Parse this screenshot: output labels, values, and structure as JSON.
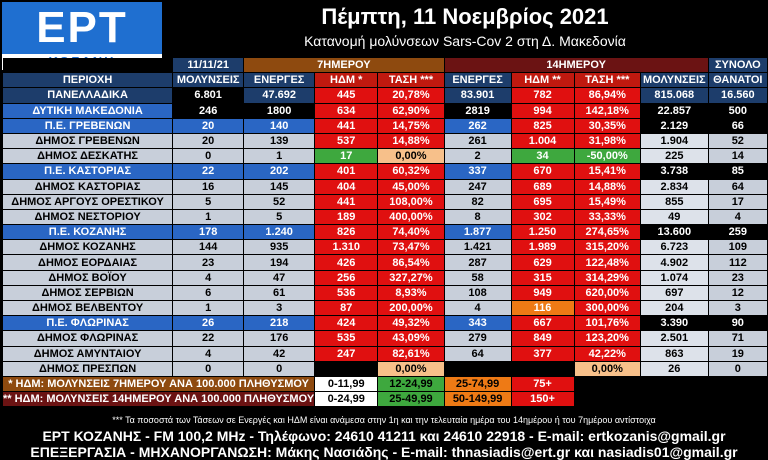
{
  "logo": {
    "brand": "ΕΡΤ",
    "city": "ΚΟΖΑΝΗ"
  },
  "header": {
    "title": "Πέμπτη, 11 Νοεμβρίος 2021",
    "subtitle": "Κατανομή μολύνσεων Sars-Cov 2 στη Δ. Μακεδονία"
  },
  "groups": {
    "date": "11/11/21",
    "g7": "7ΗΜΕΡΟΥ",
    "g14": "14ΗΜΕΡΟΥ",
    "total": "ΣΥΝΟΛΟ"
  },
  "columns": [
    "ΠΕΡΙΟΧΗ",
    "ΜΟΛΥΝΣΕΙΣ",
    "ΕΝΕΡΓΕΣ",
    "ΗΔΜ *",
    "ΤΑΣΗ ***",
    "ΕΝΕΡΓΕΣ",
    "ΗΔΜ **",
    "ΤΑΣΗ ***",
    "ΜΟΛΥΝΣΕΙΣ",
    "ΘΑΝΑΤΟΙ"
  ],
  "rows": [
    {
      "type": "nat",
      "name": "ΠΑΝΕΛΛΑΔΙΚΑ",
      "cells": [
        "6.801",
        "47.692",
        "445",
        "20,78%",
        "83.901",
        "782",
        "86,94%",
        "815.068",
        "16.560"
      ]
    },
    {
      "type": "reg",
      "name": "ΔΥΤΙΚΗ ΜΑΚΕΔΟΝΙΑ",
      "cells": [
        "246",
        "1800",
        "634",
        "62,90%",
        "2819",
        "994",
        "142,18%",
        "22.857",
        "500"
      ]
    },
    {
      "type": "pe",
      "name": "Π.Ε. ΓΡΕΒΕΝΩΝ",
      "cells": [
        "20",
        "140",
        "441",
        "14,75%",
        "262",
        "825",
        "30,35%",
        "2.129",
        "66"
      ]
    },
    {
      "type": "d",
      "name": "ΔΗΜΟΣ ΓΡΕΒΕΝΩΝ",
      "cells": [
        "20",
        "139",
        "537",
        "14,88%",
        "261",
        "1.004",
        "31,98%",
        "1.904",
        "52"
      ]
    },
    {
      "type": "d",
      "name": "ΔΗΜΟΣ ΔΕΣΚΑΤΗΣ",
      "cells": [
        "0",
        "1",
        "17",
        "0,00%",
        "2",
        "34",
        "-50,00%",
        "225",
        "14"
      ]
    },
    {
      "type": "pe",
      "name": "Π.Ε. ΚΑΣΤΟΡΙΑΣ",
      "cells": [
        "22",
        "202",
        "401",
        "60,32%",
        "337",
        "670",
        "15,41%",
        "3.738",
        "85"
      ]
    },
    {
      "type": "d",
      "name": "ΔΗΜΟΣ ΚΑΣΤΟΡΙΑΣ",
      "cells": [
        "16",
        "145",
        "404",
        "45,00%",
        "247",
        "689",
        "14,88%",
        "2.834",
        "64"
      ]
    },
    {
      "type": "d",
      "name": "ΔΗΜΟΣ ΑΡΓΟΥΣ ΟΡΕΣΤΙΚΟΥ",
      "cells": [
        "5",
        "52",
        "441",
        "108,00%",
        "82",
        "695",
        "15,49%",
        "855",
        "17"
      ]
    },
    {
      "type": "d",
      "name": "ΔΗΜΟΣ ΝΕΣΤΟΡΙΟΥ",
      "cells": [
        "1",
        "5",
        "189",
        "400,00%",
        "8",
        "302",
        "33,33%",
        "49",
        "4"
      ]
    },
    {
      "type": "pe",
      "name": "Π.Ε. ΚΟΖΑΝΗΣ",
      "cells": [
        "178",
        "1.240",
        "826",
        "74,40%",
        "1.877",
        "1.250",
        "274,65%",
        "13.600",
        "259"
      ]
    },
    {
      "type": "d",
      "name": "ΔΗΜΟΣ ΚΟΖΑΝΗΣ",
      "cells": [
        "144",
        "935",
        "1.310",
        "73,47%",
        "1.421",
        "1.989",
        "315,20%",
        "6.723",
        "109"
      ]
    },
    {
      "type": "d",
      "name": "ΔΗΜΟΣ ΕΟΡΔΑΙΑΣ",
      "cells": [
        "23",
        "194",
        "426",
        "86,54%",
        "287",
        "629",
        "122,48%",
        "4.902",
        "112"
      ]
    },
    {
      "type": "d",
      "name": "ΔΗΜΟΣ ΒΟΪΟΥ",
      "cells": [
        "4",
        "47",
        "256",
        "327,27%",
        "58",
        "315",
        "314,29%",
        "1.074",
        "23"
      ]
    },
    {
      "type": "d",
      "name": "ΔΗΜΟΣ ΣΕΡΒΙΩΝ",
      "cells": [
        "6",
        "61",
        "536",
        "8,93%",
        "108",
        "949",
        "620,00%",
        "697",
        "12"
      ]
    },
    {
      "type": "d",
      "name": "ΔΗΜΟΣ ΒΕΛΒΕΝΤΟΥ",
      "cells": [
        "1",
        "3",
        "87",
        "200,00%",
        "4",
        "116",
        "300,00%",
        "204",
        "3"
      ]
    },
    {
      "type": "pe",
      "name": "Π.Ε. ΦΛΩΡΙΝΑΣ",
      "cells": [
        "26",
        "218",
        "424",
        "49,32%",
        "343",
        "667",
        "101,76%",
        "3.390",
        "90"
      ]
    },
    {
      "type": "d",
      "name": "ΔΗΜΟΣ ΦΛΩΡΙΝΑΣ",
      "cells": [
        "22",
        "176",
        "535",
        "43,09%",
        "279",
        "849",
        "123,20%",
        "2.501",
        "71"
      ]
    },
    {
      "type": "d",
      "name": "ΔΗΜΟΣ ΑΜΥΝΤΑΙΟΥ",
      "cells": [
        "4",
        "42",
        "247",
        "82,61%",
        "64",
        "377",
        "42,22%",
        "863",
        "19"
      ]
    },
    {
      "type": "d",
      "name": "ΔΗΜΟΣ ΠΡΕΣΠΩΝ",
      "cells": [
        "0",
        "0",
        "0",
        "0,00%",
        "0",
        "0",
        "0,00%",
        "26",
        "0"
      ]
    }
  ],
  "legend": [
    {
      "label": "* ΗΔΜ: ΜΟΛΥΝΣΕΙΣ 7ΗΜΕΡΟΥ ΑΝΑ 100.000 ΠΛΗΘΥΣΜΟΥ",
      "ranges": [
        "0-11,99",
        "12-24,99",
        "25-74,99",
        "75+"
      ]
    },
    {
      "label": "** ΗΔΜ: ΜΟΛΥΝΣΕΙΣ 14ΗΜΕΡΟΥ ΑΝΑ 100.000 ΠΛΗΘΥΣΜΟΥ",
      "ranges": [
        "0-24,99",
        "25-49,99",
        "50-149,99",
        "150+"
      ]
    }
  ],
  "note": "*** Τα ποσοστά των Τάσεων σε Ενεργές και ΗΔΜ είναι ανάμεσα στην 1η και την τελευταία ημέρα του 14ημέρου ή του 7ημέρου αντίστοιχα",
  "footer": {
    "line1": "ΕΡΤ ΚΟΖΑΝΗΣ - FM 100,2 MHz - Τηλέφωνο:  24610 41211 και 24610 22918 - E-mail: ertkozanis@gmail.gr",
    "line2": "ΕΠΕΞΕΡΓΑΣΙΑ  -  ΜΗΧΑΝΟΡΓΑΝΩΣΗ: Μάκης Νασιάδης  -  E-mail: thnasiadis@ert.gr και nasiadis01@gmail.gr"
  }
}
